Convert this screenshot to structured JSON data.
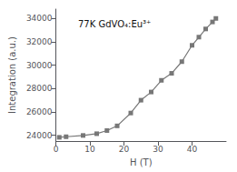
{
  "chart_data": {
    "type": "line",
    "title": "77K GdVO₄:Eu³⁺",
    "xlabel": "H (T)",
    "ylabel": "Integration (a.u.)",
    "x": [
      1,
      3,
      8,
      12,
      15,
      18,
      22,
      25,
      28,
      31,
      34,
      37,
      40,
      42,
      44,
      46,
      47
    ],
    "values": [
      23820,
      23870,
      23980,
      24130,
      24400,
      24800,
      25900,
      27000,
      27700,
      28700,
      29300,
      30300,
      31700,
      32400,
      33100,
      33700,
      34000
    ],
    "color": "#777777",
    "marker": "square",
    "xlim": [
      0,
      50
    ],
    "xticks": [
      0,
      10,
      20,
      30,
      40
    ],
    "ylim": [
      23500,
      34800
    ],
    "yticks": [
      24000,
      26000,
      28000,
      30000,
      32000,
      34000
    ],
    "grid": false
  }
}
